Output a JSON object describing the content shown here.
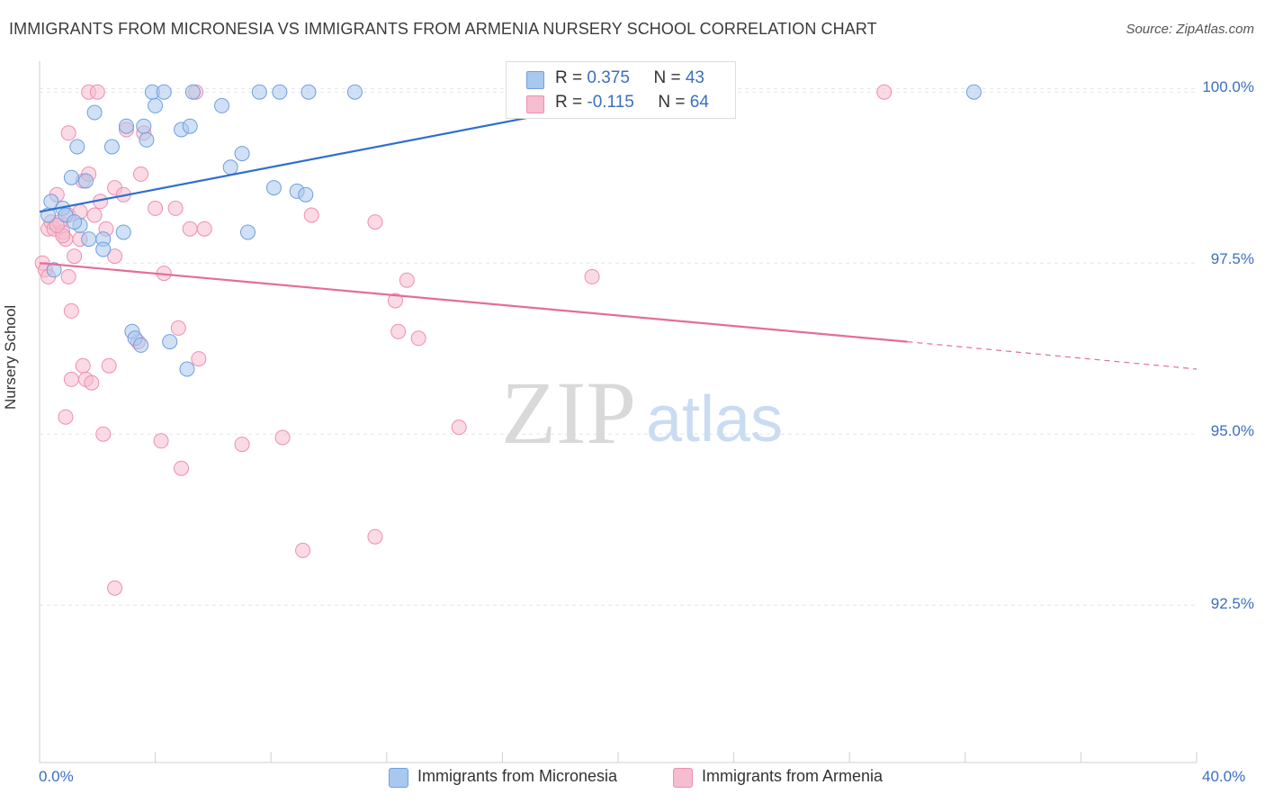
{
  "title": "IMMIGRANTS FROM MICRONESIA VS IMMIGRANTS FROM ARMENIA NURSERY SCHOOL CORRELATION CHART",
  "source": "Source: ZipAtlas.com",
  "watermark": {
    "zip": "ZIP",
    "atlas": "atlas"
  },
  "colors": {
    "blue_fill": "#a9c8ef",
    "blue_stroke": "#6f9fe0",
    "blue_line": "#2f6fcf",
    "pink_fill": "#f6bcd0",
    "pink_stroke": "#ee8fb0",
    "pink_line": "#e46d98",
    "axis_text": "#3b6fc0",
    "grid": "#e6e6e6"
  },
  "stats": {
    "row1": {
      "r_label": "R = ",
      "r_value": "0.375",
      "n_label": "N = ",
      "n_value": "43"
    },
    "row2": {
      "r_label": "R = ",
      "r_value": "-0.115",
      "n_label": "N = ",
      "n_value": "64"
    }
  },
  "legend": {
    "blue": "Immigrants from Micronesia",
    "pink": "Immigrants from Armenia"
  },
  "chart_data": {
    "type": "scatter",
    "title": "IMMIGRANTS FROM MICRONESIA VS IMMIGRANTS FROM ARMENIA NURSERY SCHOOL CORRELATION CHART",
    "xlabel": "",
    "ylabel": "Nursery School",
    "xlim": [
      0,
      40
    ],
    "ylim": [
      90.2,
      100.45
    ],
    "x_tick_labels": [
      "0.0%",
      "40.0%"
    ],
    "y_ticks": [
      92.5,
      95.0,
      97.5,
      100.0
    ],
    "y_tick_labels": [
      "92.5%",
      "95.0%",
      "97.5%",
      "100.0%"
    ],
    "grid": true,
    "legend_position": "bottom",
    "series": [
      {
        "name": "Immigrants from Micronesia",
        "color": "#a9c8ef",
        "trend": {
          "x": [
            0.0,
            21.5
          ],
          "y": [
            98.25,
            100.0
          ]
        },
        "points": [
          [
            0.3,
            98.2
          ],
          [
            0.4,
            98.4
          ],
          [
            0.8,
            98.3
          ],
          [
            0.9,
            98.2
          ],
          [
            1.1,
            98.75
          ],
          [
            1.3,
            99.2
          ],
          [
            1.4,
            98.05
          ],
          [
            1.6,
            98.7
          ],
          [
            1.7,
            97.85
          ],
          [
            1.9,
            99.7
          ],
          [
            2.2,
            97.85
          ],
          [
            2.2,
            97.7
          ],
          [
            2.5,
            99.2
          ],
          [
            2.9,
            97.95
          ],
          [
            3.0,
            99.5
          ],
          [
            3.2,
            96.5
          ],
          [
            3.3,
            96.4
          ],
          [
            3.5,
            96.3
          ],
          [
            3.6,
            99.5
          ],
          [
            3.7,
            99.3
          ],
          [
            3.9,
            100.0
          ],
          [
            4.0,
            99.8
          ],
          [
            4.3,
            100.0
          ],
          [
            4.5,
            96.35
          ],
          [
            4.9,
            99.45
          ],
          [
            5.2,
            99.5
          ],
          [
            5.3,
            100.0
          ],
          [
            6.3,
            99.8
          ],
          [
            6.6,
            98.9
          ],
          [
            7.0,
            99.1
          ],
          [
            7.2,
            97.95
          ],
          [
            7.6,
            100.0
          ],
          [
            8.1,
            98.6
          ],
          [
            8.3,
            100.0
          ],
          [
            8.9,
            98.55
          ],
          [
            9.2,
            98.5
          ],
          [
            9.3,
            100.0
          ],
          [
            10.9,
            100.0
          ],
          [
            5.1,
            95.95
          ],
          [
            0.5,
            97.4
          ],
          [
            1.2,
            98.1
          ],
          [
            19.1,
            100.0
          ],
          [
            32.3,
            100.0
          ]
        ]
      },
      {
        "name": "Immigrants from Armenia",
        "color": "#f6bcd0",
        "trend": {
          "x": [
            0.0,
            30.0
          ],
          "y": [
            97.5,
            96.35
          ]
        },
        "trend_dashed": {
          "x": [
            30.0,
            40.0
          ],
          "y": [
            96.35,
            95.95
          ]
        },
        "points": [
          [
            0.1,
            97.5
          ],
          [
            0.2,
            97.4
          ],
          [
            0.3,
            98.0
          ],
          [
            0.3,
            97.3
          ],
          [
            0.4,
            98.1
          ],
          [
            0.5,
            98.0
          ],
          [
            0.6,
            98.5
          ],
          [
            0.7,
            98.1
          ],
          [
            0.8,
            97.95
          ],
          [
            0.9,
            97.85
          ],
          [
            0.9,
            95.25
          ],
          [
            1.0,
            98.2
          ],
          [
            1.0,
            97.3
          ],
          [
            1.0,
            99.4
          ],
          [
            1.1,
            95.8
          ],
          [
            1.1,
            96.8
          ],
          [
            1.2,
            97.6
          ],
          [
            1.4,
            97.85
          ],
          [
            1.4,
            98.25
          ],
          [
            1.5,
            98.7
          ],
          [
            1.5,
            96.0
          ],
          [
            1.6,
            95.8
          ],
          [
            1.7,
            100.0
          ],
          [
            1.8,
            95.75
          ],
          [
            1.7,
            98.8
          ],
          [
            1.9,
            98.2
          ],
          [
            2.0,
            100.0
          ],
          [
            2.1,
            98.4
          ],
          [
            2.2,
            95.0
          ],
          [
            2.3,
            98.0
          ],
          [
            2.4,
            96.0
          ],
          [
            2.6,
            97.6
          ],
          [
            2.6,
            98.6
          ],
          [
            2.6,
            92.75
          ],
          [
            2.9,
            98.5
          ],
          [
            3.0,
            99.45
          ],
          [
            3.4,
            96.35
          ],
          [
            3.5,
            98.8
          ],
          [
            3.6,
            99.4
          ],
          [
            4.0,
            98.3
          ],
          [
            4.2,
            94.9
          ],
          [
            4.3,
            97.35
          ],
          [
            4.7,
            98.3
          ],
          [
            4.8,
            96.55
          ],
          [
            4.9,
            94.5
          ],
          [
            5.2,
            98.0
          ],
          [
            5.4,
            100.0
          ],
          [
            5.5,
            96.1
          ],
          [
            5.7,
            98.0
          ],
          [
            7.0,
            94.85
          ],
          [
            8.4,
            94.95
          ],
          [
            9.1,
            93.3
          ],
          [
            9.4,
            98.2
          ],
          [
            11.6,
            93.5
          ],
          [
            11.6,
            98.1
          ],
          [
            12.3,
            96.95
          ],
          [
            12.4,
            96.5
          ],
          [
            12.7,
            97.25
          ],
          [
            13.1,
            96.4
          ],
          [
            14.5,
            95.1
          ],
          [
            19.1,
            97.3
          ],
          [
            29.2,
            100.0
          ],
          [
            0.8,
            97.9
          ],
          [
            0.6,
            98.05
          ]
        ]
      }
    ]
  }
}
